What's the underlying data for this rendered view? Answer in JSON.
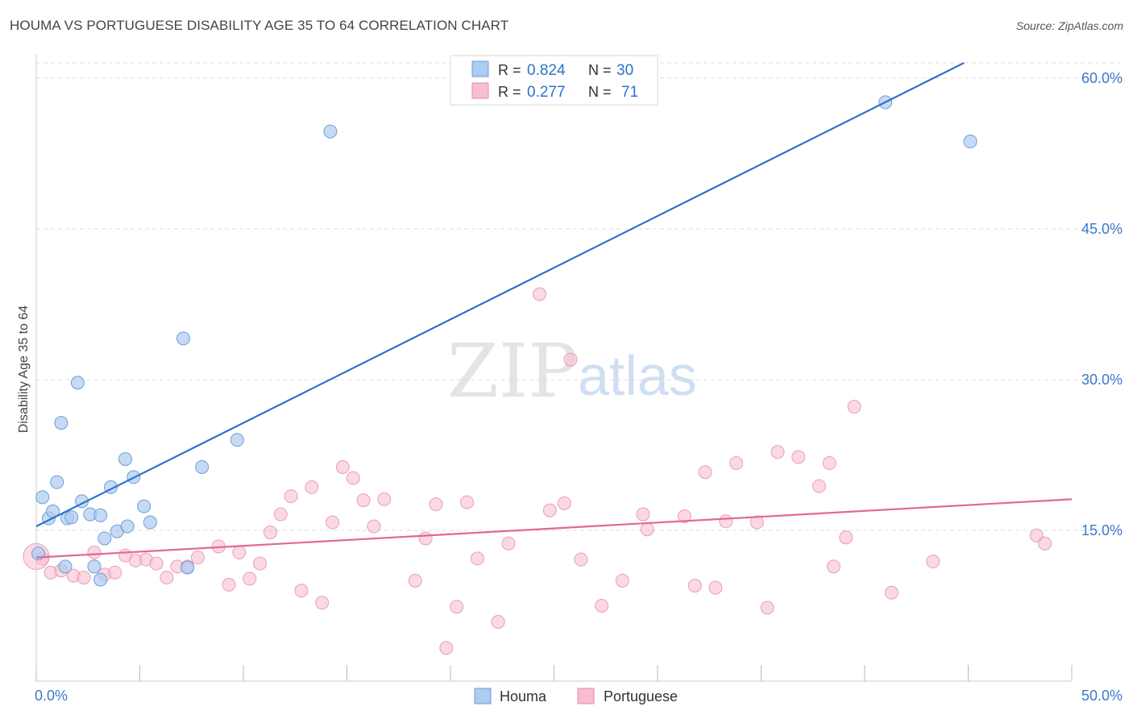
{
  "title": "HOUMA VS PORTUGUESE DISABILITY AGE 35 TO 64 CORRELATION CHART",
  "source": "Source: ZipAtlas.com",
  "watermark": {
    "zip": "ZIP",
    "atlas": "atlas"
  },
  "colors": {
    "houma_fill": "#aecbf0",
    "houma_stroke": "#6a9fd8",
    "houma_line": "#2d72cc",
    "portuguese_fill": "#f7bfd0",
    "portuguese_stroke": "#e888a6",
    "portuguese_line": "#e2679a",
    "tick_label": "#3a78c9",
    "grid": "#dddddd"
  },
  "legend": {
    "rows": [
      {
        "r_label": "R = ",
        "r_value": "0.824",
        "n_label": "N = ",
        "n_value": "30"
      },
      {
        "r_label": "R = ",
        "r_value": "0.277",
        "n_label": "N = ",
        "n_value": "71"
      }
    ]
  },
  "bottom_legend": {
    "houma": "Houma",
    "portuguese": "Portuguese"
  },
  "chart_data": {
    "type": "scatter",
    "title": "HOUMA VS PORTUGUESE DISABILITY AGE 35 TO 64 CORRELATION CHART",
    "xlabel": "",
    "ylabel": "Disability Age 35 to 64",
    "xlim": [
      0,
      50
    ],
    "ylim": [
      0,
      60.0
    ],
    "x_tick_labels": [
      "0.0%",
      "50.0%"
    ],
    "y_ticks": [
      15,
      30,
      45,
      60
    ],
    "y_tick_labels": [
      "15.0%",
      "30.0%",
      "45.0%",
      "60.0%"
    ],
    "series": [
      {
        "name": "Houma",
        "R": 0.824,
        "N": 30,
        "trend": {
          "x": [
            0,
            44.8
          ],
          "y": [
            15.4,
            60.0
          ]
        },
        "points": [
          [
            0.1,
            12.7
          ],
          [
            0.3,
            18.3
          ],
          [
            0.6,
            16.2
          ],
          [
            0.8,
            16.9
          ],
          [
            1.0,
            19.8
          ],
          [
            1.2,
            25.7
          ],
          [
            1.4,
            11.4
          ],
          [
            1.5,
            16.2
          ],
          [
            1.7,
            16.3
          ],
          [
            2.0,
            29.7
          ],
          [
            2.2,
            17.9
          ],
          [
            2.6,
            16.6
          ],
          [
            2.8,
            11.4
          ],
          [
            3.1,
            10.1
          ],
          [
            3.1,
            16.5
          ],
          [
            3.3,
            14.2
          ],
          [
            3.6,
            19.3
          ],
          [
            3.9,
            14.9
          ],
          [
            4.3,
            22.1
          ],
          [
            4.4,
            15.4
          ],
          [
            4.7,
            20.3
          ],
          [
            5.2,
            17.4
          ],
          [
            5.5,
            15.8
          ],
          [
            7.1,
            34.1
          ],
          [
            7.3,
            11.3
          ],
          [
            8.0,
            21.3
          ],
          [
            9.7,
            24.0
          ],
          [
            14.2,
            54.7
          ],
          [
            41.0,
            57.6
          ],
          [
            45.1,
            53.7
          ]
        ]
      },
      {
        "name": "Portuguese",
        "R": 0.277,
        "N": 71,
        "trend": {
          "x": [
            0,
            50
          ],
          "y": [
            12.3,
            18.1
          ]
        },
        "points": [
          [
            0.3,
            12.2
          ],
          [
            0.7,
            10.8
          ],
          [
            1.2,
            11.0
          ],
          [
            1.8,
            10.5
          ],
          [
            2.3,
            10.3
          ],
          [
            2.8,
            12.8
          ],
          [
            3.3,
            10.6
          ],
          [
            3.8,
            10.8
          ],
          [
            4.3,
            12.5
          ],
          [
            4.8,
            12.0
          ],
          [
            5.3,
            12.1
          ],
          [
            5.8,
            11.7
          ],
          [
            6.3,
            10.3
          ],
          [
            6.8,
            11.4
          ],
          [
            7.3,
            11.4
          ],
          [
            7.8,
            12.3
          ],
          [
            8.8,
            13.4
          ],
          [
            9.3,
            9.6
          ],
          [
            9.8,
            12.8
          ],
          [
            10.3,
            10.2
          ],
          [
            10.8,
            11.7
          ],
          [
            11.3,
            14.8
          ],
          [
            11.8,
            16.6
          ],
          [
            12.3,
            18.4
          ],
          [
            12.8,
            9.0
          ],
          [
            13.3,
            19.3
          ],
          [
            13.8,
            7.8
          ],
          [
            14.3,
            15.8
          ],
          [
            14.8,
            21.3
          ],
          [
            15.3,
            20.2
          ],
          [
            15.8,
            18.0
          ],
          [
            16.3,
            15.4
          ],
          [
            16.8,
            18.1
          ],
          [
            18.3,
            10.0
          ],
          [
            18.8,
            14.2
          ],
          [
            19.3,
            17.6
          ],
          [
            19.8,
            3.3
          ],
          [
            20.3,
            7.4
          ],
          [
            20.8,
            17.8
          ],
          [
            21.3,
            12.2
          ],
          [
            22.3,
            5.9
          ],
          [
            22.8,
            13.7
          ],
          [
            24.3,
            38.5
          ],
          [
            24.8,
            17.0
          ],
          [
            25.5,
            17.7
          ],
          [
            25.8,
            32.0
          ],
          [
            26.3,
            12.1
          ],
          [
            27.3,
            7.5
          ],
          [
            28.3,
            10.0
          ],
          [
            29.3,
            16.6
          ],
          [
            29.5,
            15.1
          ],
          [
            31.3,
            16.4
          ],
          [
            31.8,
            9.5
          ],
          [
            32.3,
            20.8
          ],
          [
            32.8,
            9.3
          ],
          [
            33.3,
            15.9
          ],
          [
            33.8,
            21.7
          ],
          [
            34.8,
            15.8
          ],
          [
            35.3,
            7.3
          ],
          [
            35.8,
            22.8
          ],
          [
            36.8,
            22.3
          ],
          [
            37.8,
            19.4
          ],
          [
            38.3,
            21.7
          ],
          [
            38.5,
            11.4
          ],
          [
            39.1,
            14.3
          ],
          [
            39.5,
            27.3
          ],
          [
            41.3,
            8.8
          ],
          [
            43.3,
            11.9
          ],
          [
            48.3,
            14.5
          ],
          [
            48.7,
            13.7
          ],
          [
            0.0,
            12.4
          ]
        ]
      }
    ]
  }
}
